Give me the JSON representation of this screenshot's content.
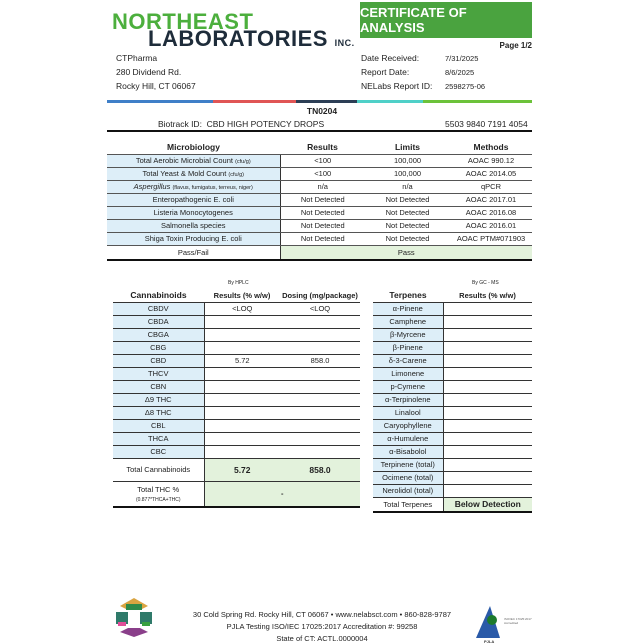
{
  "header": {
    "logo_line1": "NORTHEAST",
    "logo_line2": "LABORATORIES",
    "logo_inc": "INC.",
    "title": "CERTIFICATE OF ANALYSIS",
    "page": "Page 1/2"
  },
  "client": {
    "name": "CTPharma",
    "address1": "280 Dividend Rd.",
    "address2": "Rocky Hill, CT 06067"
  },
  "report": {
    "date_received_label": "Date Received:",
    "date_received": "7/31/2025",
    "report_date_label": "Report Date:",
    "report_date": "8/6/2025",
    "report_id_label": "NELabs Report ID:",
    "report_id": "2598275-06"
  },
  "sample": {
    "tn": "TN0204",
    "biotrack_label": "Biotrack ID:",
    "product": "CBD HIGH POTENCY DROPS",
    "biotrack_id": "5503 9840 7191 4054"
  },
  "microbiology": {
    "headers": [
      "Microbiology",
      "Results",
      "Limits",
      "Methods"
    ],
    "rows": [
      {
        "name": "Total Aerobic Microbial Count",
        "unit": "(cfu/g)",
        "result": "<100",
        "limit": "100,000",
        "method": "AOAC 990.12"
      },
      {
        "name": "Total Yeast & Mold Count",
        "unit": "(cfu/g)",
        "result": "<100",
        "limit": "100,000",
        "method": "AOAC 2014.05"
      },
      {
        "name": "Aspergillus",
        "unit": "(flavus, fumigatus, terreus, niger)",
        "result": "n/a",
        "limit": "n/a",
        "method": "qPCR"
      },
      {
        "name": "Enteropathogenic E. coli",
        "unit": "",
        "result": "Not Detected",
        "limit": "Not Detected",
        "method": "AOAC 2017.01"
      },
      {
        "name": "Listeria Monocytogenes",
        "unit": "",
        "result": "Not Detected",
        "limit": "Not Detected",
        "method": "AOAC 2016.08"
      },
      {
        "name": "Salmonella species",
        "unit": "",
        "result": "Not Detected",
        "limit": "Not Detected",
        "method": "AOAC 2016.01"
      },
      {
        "name": "Shiga Toxin Producing E. coli",
        "unit": "",
        "result": "Not Detected",
        "limit": "Not Detected",
        "method": "AOAC PTM#071903"
      }
    ],
    "pass_label": "Pass/Fail",
    "pass_value": "Pass"
  },
  "cannabinoids": {
    "method": "By HPLC",
    "headers": [
      "Cannabinoids",
      "Results (% w/w)",
      "Dosing (mg/package)"
    ],
    "rows": [
      [
        "CBDV",
        "<LOQ",
        "<LOQ"
      ],
      [
        "CBDA",
        "",
        ""
      ],
      [
        "CBGA",
        "",
        ""
      ],
      [
        "CBG",
        "",
        ""
      ],
      [
        "CBD",
        "5.72",
        "858.0"
      ],
      [
        "THCV",
        "",
        ""
      ],
      [
        "CBN",
        "",
        ""
      ],
      [
        "Δ9 THC",
        "",
        ""
      ],
      [
        "Δ8 THC",
        "",
        ""
      ],
      [
        "CBL",
        "",
        ""
      ],
      [
        "THCA",
        "",
        ""
      ],
      [
        "CBC",
        "",
        ""
      ]
    ],
    "total_label": "Total Cannabinoids",
    "total_result": "5.72",
    "total_dosing": "858.0",
    "thc_label": "Total THC %",
    "thc_note": "(0.877*THCA+THC)",
    "thc_value": "-"
  },
  "terpenes": {
    "method": "By GC - MS",
    "headers": [
      "Terpenes",
      "Results (% w/w)"
    ],
    "rows": [
      "α-Pinene",
      "Camphene",
      "β-Myrcene",
      "β-Pinene",
      "δ-3-Carene",
      "Limonene",
      "p-Cymene",
      "α-Terpinolene",
      "Linalool",
      "Caryophyllene",
      "α-Humulene",
      "α-Bisabolol",
      "Terpinene (total)",
      "Ocimene (total)",
      "Nerolidol (total)"
    ],
    "total_label": "Total Terpenes",
    "total_value": "Below Detection"
  },
  "footer": {
    "line1": "30 Cold Spring Rd. Rocky Hill, CT 06067  •  www.nelabsct.com  •  860-828-9787",
    "line2": "PJLA Testing ISO/IEC 17025:2017 Accreditation #: 99258",
    "line3": "State of CT: ACTL.0000004",
    "pjla": "PJLA"
  },
  "colors": {
    "brand_green": "#4aa33f",
    "label_blue": "#ddeef8",
    "pass_green": "#e3f2dc"
  }
}
